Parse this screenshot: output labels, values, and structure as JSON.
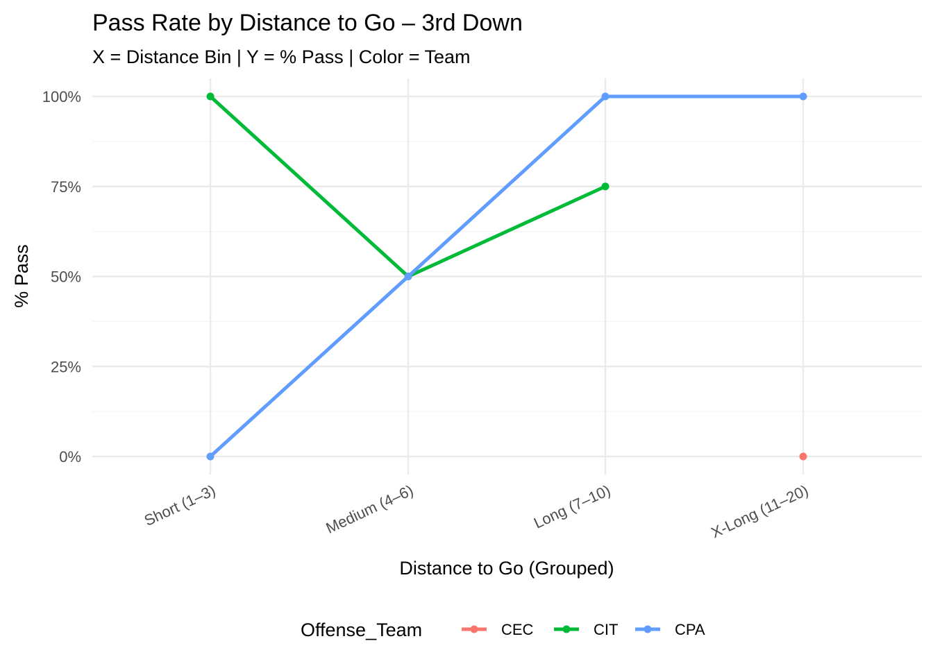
{
  "chart_data": {
    "type": "line",
    "title": "Pass Rate by Distance to Go – 3rd Down",
    "subtitle": "X = Distance Bin | Y = % Pass | Color = Team",
    "xlabel": "Distance to Go (Grouped)",
    "ylabel": "% Pass",
    "categories": [
      "Short (1–3)",
      "Medium (4–6)",
      "Long (7–10)",
      "X-Long (11–20)"
    ],
    "ylim": [
      0,
      100
    ],
    "yticks": [
      0,
      25,
      50,
      75,
      100
    ],
    "ytick_labels": [
      "0%",
      "25%",
      "50%",
      "75%",
      "100%"
    ],
    "grid": true,
    "legend": {
      "title": "Offense_Team",
      "position": "bottom"
    },
    "series": [
      {
        "name": "CEC",
        "color": "#F8766D",
        "values": [
          null,
          null,
          null,
          0
        ]
      },
      {
        "name": "CIT",
        "color": "#00BA38",
        "values": [
          100,
          50,
          75,
          null
        ]
      },
      {
        "name": "CPA",
        "color": "#619CFF",
        "values": [
          0,
          50,
          100,
          100
        ]
      }
    ]
  }
}
